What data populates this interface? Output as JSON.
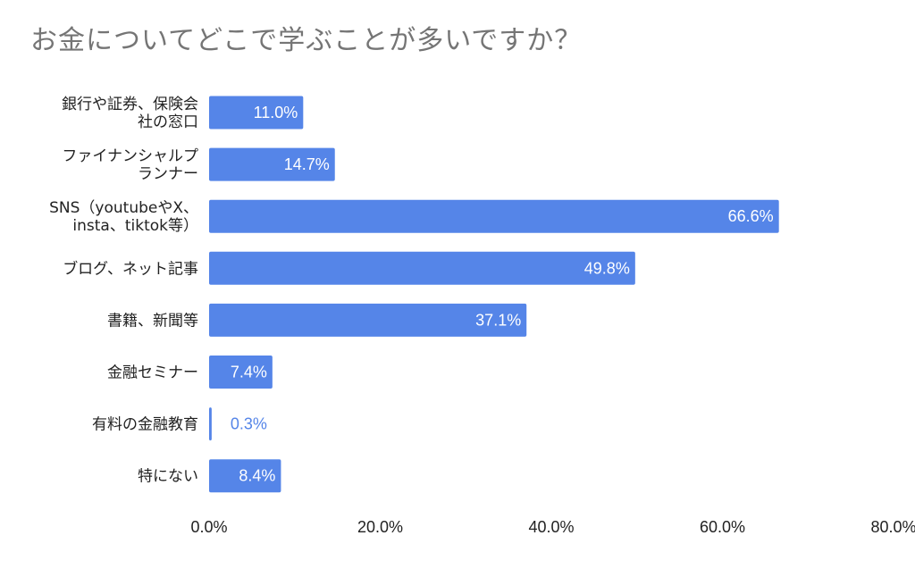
{
  "title": "お金についてどこで学ぶことが多いですか？",
  "colors": {
    "bar": "#5585e8",
    "label_inside": "#ffffff",
    "label_outside": "#5585e8",
    "text": "#222222",
    "title": "#757575"
  },
  "chart_data": {
    "type": "bar",
    "orientation": "horizontal",
    "title": "お金についてどこで学ぶことが多いですか？",
    "xlabel": "",
    "ylabel": "",
    "xlim": [
      0,
      80
    ],
    "grid": false,
    "legend": "none",
    "categories": [
      [
        "銀行や証券、保険会",
        "社の窓口"
      ],
      [
        "ファイナンシャルプ",
        "ランナー"
      ],
      [
        "SNS（youtubeやX、",
        "insta、tiktok等）"
      ],
      [
        "ブログ、ネット記事"
      ],
      [
        "書籍、新聞等"
      ],
      [
        "金融セミナー"
      ],
      [
        "有料の金融教育"
      ],
      [
        "特にない"
      ]
    ],
    "values": [
      11.0,
      14.7,
      66.6,
      49.8,
      37.1,
      7.4,
      0.3,
      8.4
    ],
    "value_labels": [
      "11.0%",
      "14.7%",
      "66.6%",
      "49.8%",
      "37.1%",
      "7.4%",
      "0.3%",
      "8.4%"
    ],
    "x_ticks": [
      0,
      20,
      40,
      60,
      80
    ],
    "x_tick_labels": [
      "0.0%",
      "20.0%",
      "40.0%",
      "60.0%",
      "80.0%"
    ]
  }
}
